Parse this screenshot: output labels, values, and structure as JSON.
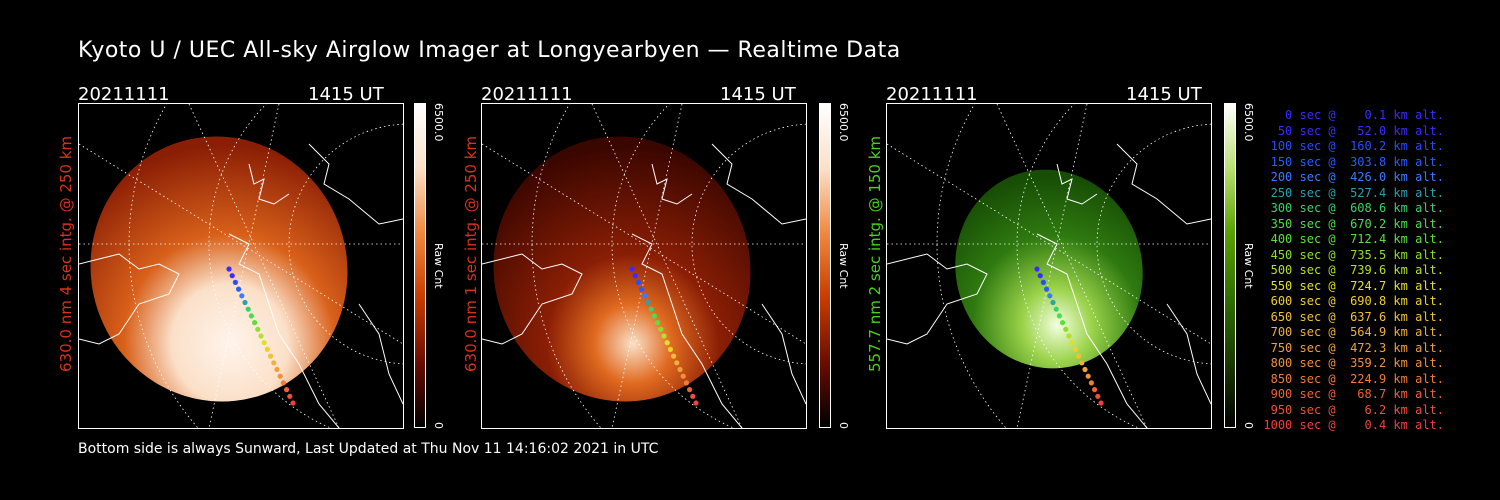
{
  "title": "Kyoto U / UEC All-sky Airglow Imager at Longyearbyen — Realtime Data",
  "footer": "Bottom side is always Sunward, Last Updated at Thu Nov 11 14:16:02 2021 in UTC",
  "panels": [
    {
      "date": "20211111",
      "time": "1415 UT",
      "label": "630.0 nm 4 sec intg. @ 250 km",
      "label_color": "#d8321c",
      "cbar_max": "6500.0",
      "cbar_unit": "Raw Cnt",
      "cbar_min": "0",
      "cmap": "red",
      "brightness": "high"
    },
    {
      "date": "20211111",
      "time": "1415 UT",
      "label": "630.0 nm 1 sec intg. @ 250 km",
      "label_color": "#d8321c",
      "cbar_max": "6500.0",
      "cbar_unit": "Raw Cnt",
      "cbar_min": "0",
      "cmap": "red",
      "brightness": "low"
    },
    {
      "date": "20211111",
      "time": "1415 UT",
      "label": "557.7 nm 2 sec intg. @ 150 km",
      "label_color": "#4bd11c",
      "cbar_max": "6500.0",
      "cbar_unit": "Raw Cnt",
      "cbar_min": "0",
      "cmap": "green",
      "brightness": "mid"
    }
  ],
  "legend": [
    {
      "text": "   0 sec @    0.1 km alt.",
      "color": "#3b2bff"
    },
    {
      "text": "  50 sec @   52.0 km alt.",
      "color": "#3b2bff"
    },
    {
      "text": " 100 sec @  160.2 km alt.",
      "color": "#2b4bff"
    },
    {
      "text": " 150 sec @  303.8 km alt.",
      "color": "#2b5bff"
    },
    {
      "text": " 200 sec @  426.0 km alt.",
      "color": "#3b7bff"
    },
    {
      "text": " 250 sec @  527.4 km alt.",
      "color": "#2ba0b0"
    },
    {
      "text": " 300 sec @  608.6 km alt.",
      "color": "#3bd06b"
    },
    {
      "text": " 350 sec @  670.2 km alt.",
      "color": "#4bdd4b"
    },
    {
      "text": " 400 sec @  712.4 km alt.",
      "color": "#5be03b"
    },
    {
      "text": " 450 sec @  735.5 km alt.",
      "color": "#8be02b"
    },
    {
      "text": " 500 sec @  739.6 km alt.",
      "color": "#b5e02b"
    },
    {
      "text": " 550 sec @  724.7 km alt.",
      "color": "#e0e02b"
    },
    {
      "text": " 600 sec @  690.8 km alt.",
      "color": "#f0d02b"
    },
    {
      "text": " 650 sec @  637.6 km alt.",
      "color": "#f0c03b"
    },
    {
      "text": " 700 sec @  564.9 km alt.",
      "color": "#f0b03b"
    },
    {
      "text": " 750 sec @  472.3 km alt.",
      "color": "#f0a03b"
    },
    {
      "text": " 800 sec @  359.2 km alt.",
      "color": "#f0903b"
    },
    {
      "text": " 850 sec @  224.9 km alt.",
      "color": "#f07b3b"
    },
    {
      "text": " 900 sec @   68.7 km alt.",
      "color": "#f0603b"
    },
    {
      "text": " 950 sec @    6.2 km alt.",
      "color": "#f0503b"
    },
    {
      "text": "1000 sec @    0.4 km alt.",
      "color": "#f0403b"
    }
  ]
}
